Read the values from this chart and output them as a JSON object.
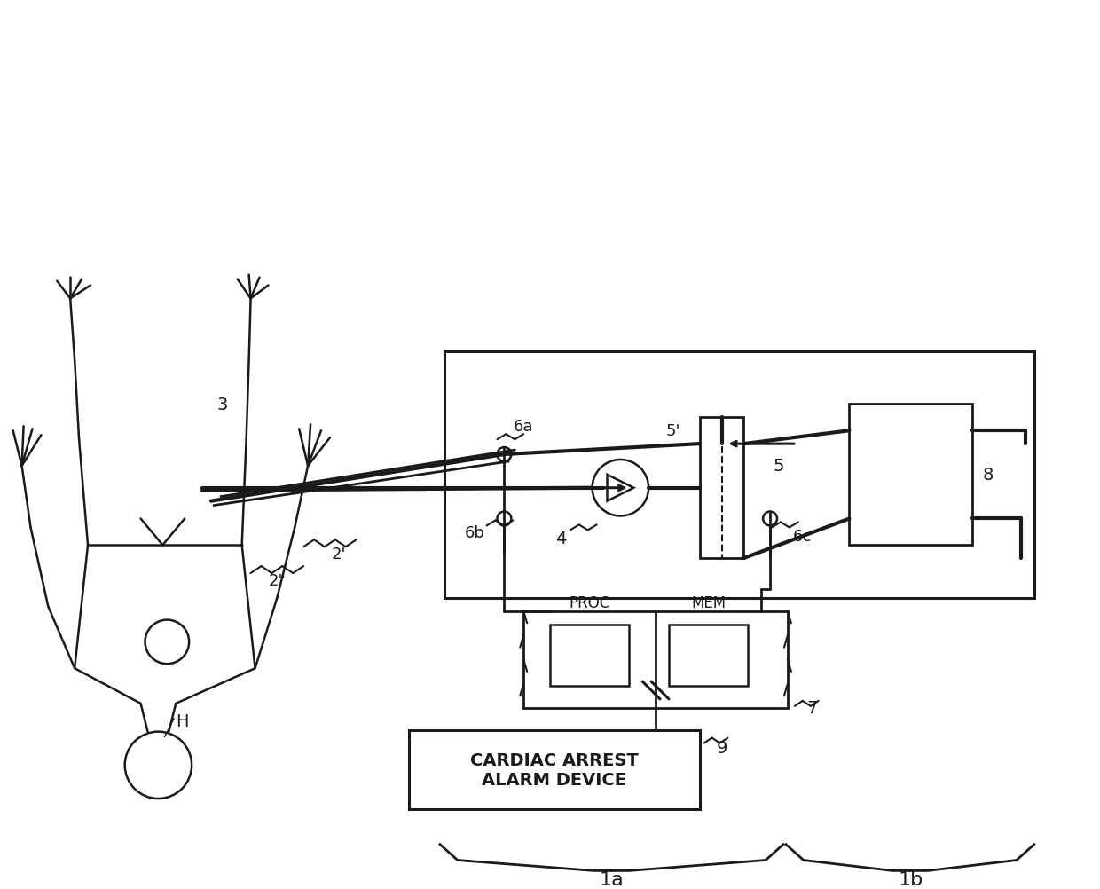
{
  "bg_color": "#ffffff",
  "line_color": "#1a1a1a",
  "label_1a": "1a",
  "label_1b": "1b",
  "label_H": "H",
  "label_2prime": "2'",
  "label_2primeprime": "2\"",
  "label_3": "3",
  "label_4": "4",
  "label_5": "5",
  "label_5prime": "5'",
  "label_6a": "6a",
  "label_6b": "6b",
  "label_6c": "6c",
  "label_7": "7",
  "label_8": "8",
  "label_9": "9",
  "label_PROC": "PROC",
  "label_MEM": "MEM",
  "label_alarm": "CARDIAC ARREST\nALARM DEVICE"
}
